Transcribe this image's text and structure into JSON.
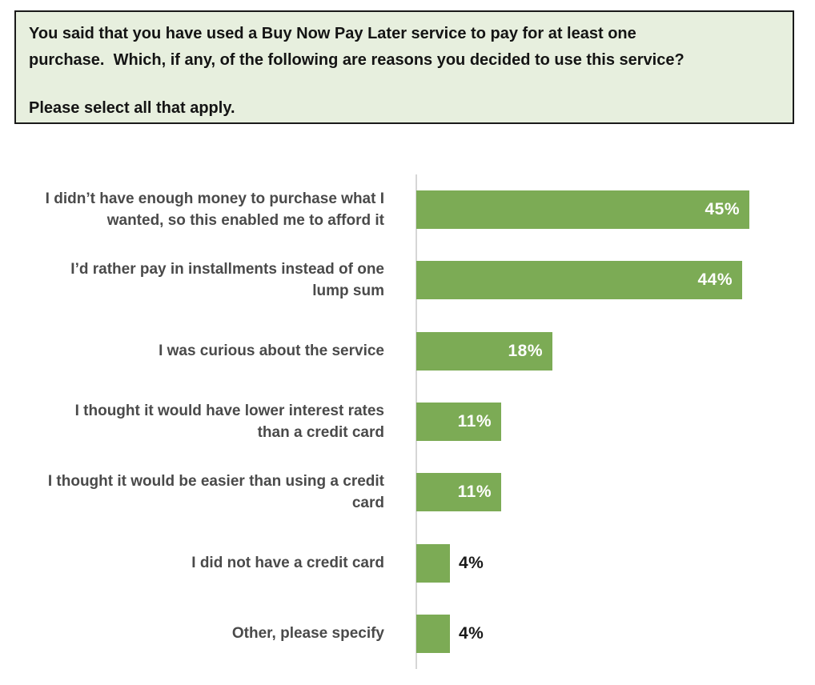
{
  "question": {
    "text": "You said that you have used a Buy Now Pay Later service to pay for at least one\npurchase.  Which, if any, of the following are reasons you decided to use this service?",
    "instruction": "Please select all that apply."
  },
  "chart_data": {
    "type": "bar",
    "orientation": "horizontal",
    "title": "",
    "xlabel": "",
    "ylabel": "",
    "xlim": [
      0,
      48
    ],
    "grid": false,
    "legend": false,
    "categories": [
      "I didn’t have enough money to purchase what I\nwanted, so this enabled me to afford it",
      "I’d rather pay in installments instead of one\nlump sum",
      "I was curious about the service",
      "I thought it would have lower interest rates\nthan a credit card",
      "I thought it would be easier than using a credit\ncard",
      "I did not have a credit card",
      "Other, please specify"
    ],
    "values": [
      45,
      44,
      18,
      11,
      11,
      4,
      4
    ],
    "value_labels": [
      "45%",
      "44%",
      "18%",
      "11%",
      "11%",
      "4%",
      "4%"
    ]
  },
  "colors": {
    "bar": "#7cab55",
    "value_label_inside": "#ffffff",
    "value_label_outside": "#1a1a1a",
    "axis_line": "#d6d6d6",
    "category_label": "#4a4a4a",
    "question_box_bg": "#e7efde",
    "question_box_border": "#1a1a1a"
  }
}
